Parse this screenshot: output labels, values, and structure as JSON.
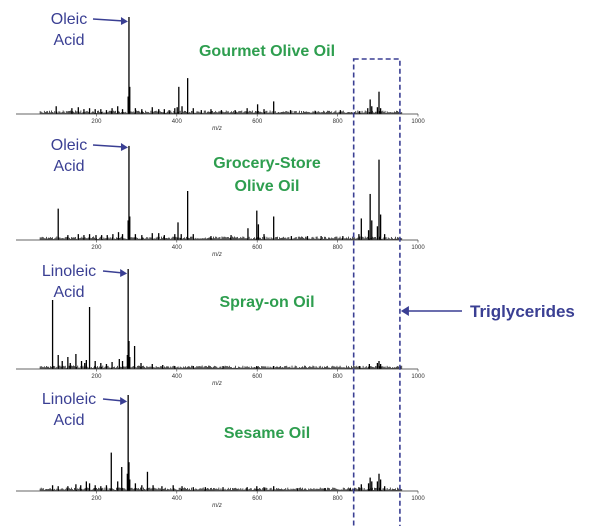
{
  "side_annotation": "Triglycerides",
  "colors": {
    "title": "#2e9e4f",
    "annotation": "#3a3f93",
    "box": "#3a3f93",
    "trace": "#000000"
  },
  "chart_data": [
    {
      "type": "bar",
      "title": "Gourmet Olive Oil",
      "xlabel": "m/z",
      "xlim": [
        0,
        1000
      ],
      "xticks": [
        "200",
        "400",
        "600",
        "800",
        "1000"
      ],
      "annotation": [
        "Oleic",
        "Acid"
      ],
      "annotation_mz": 281,
      "highlight_range": [
        840,
        955
      ],
      "peaks": [
        {
          "mz": 100,
          "h": 0.08
        },
        {
          "mz": 139,
          "h": 0.06
        },
        {
          "mz": 155,
          "h": 0.07
        },
        {
          "mz": 169,
          "h": 0.05
        },
        {
          "mz": 183,
          "h": 0.06
        },
        {
          "mz": 197,
          "h": 0.05
        },
        {
          "mz": 211,
          "h": 0.05
        },
        {
          "mz": 225,
          "h": 0.04
        },
        {
          "mz": 239,
          "h": 0.06
        },
        {
          "mz": 253,
          "h": 0.08
        },
        {
          "mz": 265,
          "h": 0.05
        },
        {
          "mz": 279,
          "h": 0.18
        },
        {
          "mz": 281,
          "h": 1.0
        },
        {
          "mz": 283,
          "h": 0.28
        },
        {
          "mz": 297,
          "h": 0.06
        },
        {
          "mz": 313,
          "h": 0.05
        },
        {
          "mz": 339,
          "h": 0.07
        },
        {
          "mz": 355,
          "h": 0.05
        },
        {
          "mz": 369,
          "h": 0.05
        },
        {
          "mz": 381,
          "h": 0.04
        },
        {
          "mz": 395,
          "h": 0.06
        },
        {
          "mz": 401,
          "h": 0.07
        },
        {
          "mz": 405,
          "h": 0.28
        },
        {
          "mz": 413,
          "h": 0.08
        },
        {
          "mz": 427,
          "h": 0.37
        },
        {
          "mz": 441,
          "h": 0.06
        },
        {
          "mz": 461,
          "h": 0.04
        },
        {
          "mz": 485,
          "h": 0.05
        },
        {
          "mz": 511,
          "h": 0.04
        },
        {
          "mz": 545,
          "h": 0.04
        },
        {
          "mz": 575,
          "h": 0.06
        },
        {
          "mz": 601,
          "h": 0.1
        },
        {
          "mz": 617,
          "h": 0.05
        },
        {
          "mz": 641,
          "h": 0.13
        },
        {
          "mz": 683,
          "h": 0.04
        },
        {
          "mz": 745,
          "h": 0.03
        },
        {
          "mz": 807,
          "h": 0.04
        },
        {
          "mz": 855,
          "h": 0.03
        },
        {
          "mz": 875,
          "h": 0.06
        },
        {
          "mz": 881,
          "h": 0.15
        },
        {
          "mz": 885,
          "h": 0.08
        },
        {
          "mz": 899,
          "h": 0.07
        },
        {
          "mz": 903,
          "h": 0.23
        },
        {
          "mz": 907,
          "h": 0.06
        }
      ]
    },
    {
      "type": "bar",
      "title": "Grocery-Store Olive Oil",
      "xlabel": "m/z",
      "xlim": [
        0,
        1000
      ],
      "xticks": [
        "200",
        "400",
        "600",
        "800",
        "1000"
      ],
      "annotation": [
        "Oleic",
        "Acid"
      ],
      "annotation_mz": 281,
      "highlight_range": [
        840,
        955
      ],
      "peaks": [
        {
          "mz": 105,
          "h": 0.32
        },
        {
          "mz": 129,
          "h": 0.05
        },
        {
          "mz": 155,
          "h": 0.06
        },
        {
          "mz": 169,
          "h": 0.05
        },
        {
          "mz": 183,
          "h": 0.06
        },
        {
          "mz": 199,
          "h": 0.05
        },
        {
          "mz": 213,
          "h": 0.05
        },
        {
          "mz": 227,
          "h": 0.05
        },
        {
          "mz": 241,
          "h": 0.06
        },
        {
          "mz": 255,
          "h": 0.08
        },
        {
          "mz": 265,
          "h": 0.06
        },
        {
          "mz": 279,
          "h": 0.2
        },
        {
          "mz": 281,
          "h": 0.96
        },
        {
          "mz": 283,
          "h": 0.24
        },
        {
          "mz": 297,
          "h": 0.06
        },
        {
          "mz": 313,
          "h": 0.05
        },
        {
          "mz": 339,
          "h": 0.07
        },
        {
          "mz": 355,
          "h": 0.07
        },
        {
          "mz": 369,
          "h": 0.05
        },
        {
          "mz": 395,
          "h": 0.06
        },
        {
          "mz": 403,
          "h": 0.18
        },
        {
          "mz": 411,
          "h": 0.06
        },
        {
          "mz": 427,
          "h": 0.5
        },
        {
          "mz": 441,
          "h": 0.06
        },
        {
          "mz": 485,
          "h": 0.04
        },
        {
          "mz": 535,
          "h": 0.05
        },
        {
          "mz": 577,
          "h": 0.12
        },
        {
          "mz": 599,
          "h": 0.3
        },
        {
          "mz": 603,
          "h": 0.16
        },
        {
          "mz": 617,
          "h": 0.06
        },
        {
          "mz": 641,
          "h": 0.24
        },
        {
          "mz": 685,
          "h": 0.04
        },
        {
          "mz": 725,
          "h": 0.04
        },
        {
          "mz": 759,
          "h": 0.04
        },
        {
          "mz": 813,
          "h": 0.04
        },
        {
          "mz": 853,
          "h": 0.06
        },
        {
          "mz": 859,
          "h": 0.22
        },
        {
          "mz": 877,
          "h": 0.1
        },
        {
          "mz": 881,
          "h": 0.47
        },
        {
          "mz": 885,
          "h": 0.2
        },
        {
          "mz": 899,
          "h": 0.14
        },
        {
          "mz": 903,
          "h": 0.82
        },
        {
          "mz": 907,
          "h": 0.26
        },
        {
          "mz": 917,
          "h": 0.06
        }
      ]
    },
    {
      "type": "bar",
      "title": "Spray-on Oil",
      "xlabel": "m/z",
      "xlim": [
        0,
        1000
      ],
      "xticks": [
        "200",
        "400",
        "600",
        "800",
        "1000"
      ],
      "annotation": [
        "Linoleic",
        "Acid"
      ],
      "annotation_mz": 279,
      "highlight_range": [
        840,
        955
      ],
      "peaks": [
        {
          "mz": 91,
          "h": 0.69
        },
        {
          "mz": 105,
          "h": 0.14
        },
        {
          "mz": 115,
          "h": 0.08
        },
        {
          "mz": 129,
          "h": 0.12
        },
        {
          "mz": 135,
          "h": 0.06
        },
        {
          "mz": 149,
          "h": 0.15
        },
        {
          "mz": 163,
          "h": 0.08
        },
        {
          "mz": 171,
          "h": 0.06
        },
        {
          "mz": 175,
          "h": 0.09
        },
        {
          "mz": 183,
          "h": 0.62
        },
        {
          "mz": 197,
          "h": 0.08
        },
        {
          "mz": 211,
          "h": 0.06
        },
        {
          "mz": 225,
          "h": 0.05
        },
        {
          "mz": 239,
          "h": 0.07
        },
        {
          "mz": 257,
          "h": 0.1
        },
        {
          "mz": 265,
          "h": 0.08
        },
        {
          "mz": 277,
          "h": 0.14
        },
        {
          "mz": 279,
          "h": 1.0
        },
        {
          "mz": 281,
          "h": 0.28
        },
        {
          "mz": 283,
          "h": 0.12
        },
        {
          "mz": 295,
          "h": 0.23
        },
        {
          "mz": 311,
          "h": 0.06
        },
        {
          "mz": 339,
          "h": 0.05
        },
        {
          "mz": 365,
          "h": 0.04
        },
        {
          "mz": 395,
          "h": 0.03
        },
        {
          "mz": 441,
          "h": 0.03
        },
        {
          "mz": 515,
          "h": 0.03
        },
        {
          "mz": 599,
          "h": 0.03
        },
        {
          "mz": 641,
          "h": 0.03
        },
        {
          "mz": 855,
          "h": 0.03
        },
        {
          "mz": 879,
          "h": 0.05
        },
        {
          "mz": 899,
          "h": 0.06
        },
        {
          "mz": 903,
          "h": 0.08
        },
        {
          "mz": 907,
          "h": 0.05
        }
      ]
    },
    {
      "type": "bar",
      "title": "Sesame Oil",
      "xlabel": "m/z",
      "xlim": [
        0,
        1000
      ],
      "xticks": [
        "200",
        "400",
        "600",
        "800",
        "1000"
      ],
      "annotation": [
        "Linoleic",
        "Acid"
      ],
      "annotation_mz": 279,
      "highlight_range": [
        840,
        955
      ],
      "peaks": [
        {
          "mz": 91,
          "h": 0.06
        },
        {
          "mz": 105,
          "h": 0.05
        },
        {
          "mz": 129,
          "h": 0.05
        },
        {
          "mz": 149,
          "h": 0.07
        },
        {
          "mz": 161,
          "h": 0.06
        },
        {
          "mz": 175,
          "h": 0.1
        },
        {
          "mz": 183,
          "h": 0.08
        },
        {
          "mz": 197,
          "h": 0.06
        },
        {
          "mz": 211,
          "h": 0.05
        },
        {
          "mz": 225,
          "h": 0.06
        },
        {
          "mz": 237,
          "h": 0.4
        },
        {
          "mz": 253,
          "h": 0.1
        },
        {
          "mz": 263,
          "h": 0.25
        },
        {
          "mz": 277,
          "h": 0.18
        },
        {
          "mz": 279,
          "h": 1.0
        },
        {
          "mz": 281,
          "h": 0.3
        },
        {
          "mz": 283,
          "h": 0.12
        },
        {
          "mz": 297,
          "h": 0.08
        },
        {
          "mz": 313,
          "h": 0.06
        },
        {
          "mz": 327,
          "h": 0.2
        },
        {
          "mz": 341,
          "h": 0.06
        },
        {
          "mz": 363,
          "h": 0.05
        },
        {
          "mz": 391,
          "h": 0.06
        },
        {
          "mz": 413,
          "h": 0.05
        },
        {
          "mz": 441,
          "h": 0.04
        },
        {
          "mz": 471,
          "h": 0.04
        },
        {
          "mz": 515,
          "h": 0.04
        },
        {
          "mz": 575,
          "h": 0.04
        },
        {
          "mz": 599,
          "h": 0.05
        },
        {
          "mz": 617,
          "h": 0.04
        },
        {
          "mz": 641,
          "h": 0.05
        },
        {
          "mz": 701,
          "h": 0.03
        },
        {
          "mz": 769,
          "h": 0.03
        },
        {
          "mz": 831,
          "h": 0.03
        },
        {
          "mz": 853,
          "h": 0.04
        },
        {
          "mz": 859,
          "h": 0.07
        },
        {
          "mz": 877,
          "h": 0.08
        },
        {
          "mz": 881,
          "h": 0.14
        },
        {
          "mz": 885,
          "h": 0.1
        },
        {
          "mz": 899,
          "h": 0.1
        },
        {
          "mz": 903,
          "h": 0.18
        },
        {
          "mz": 907,
          "h": 0.12
        },
        {
          "mz": 917,
          "h": 0.05
        }
      ]
    }
  ]
}
